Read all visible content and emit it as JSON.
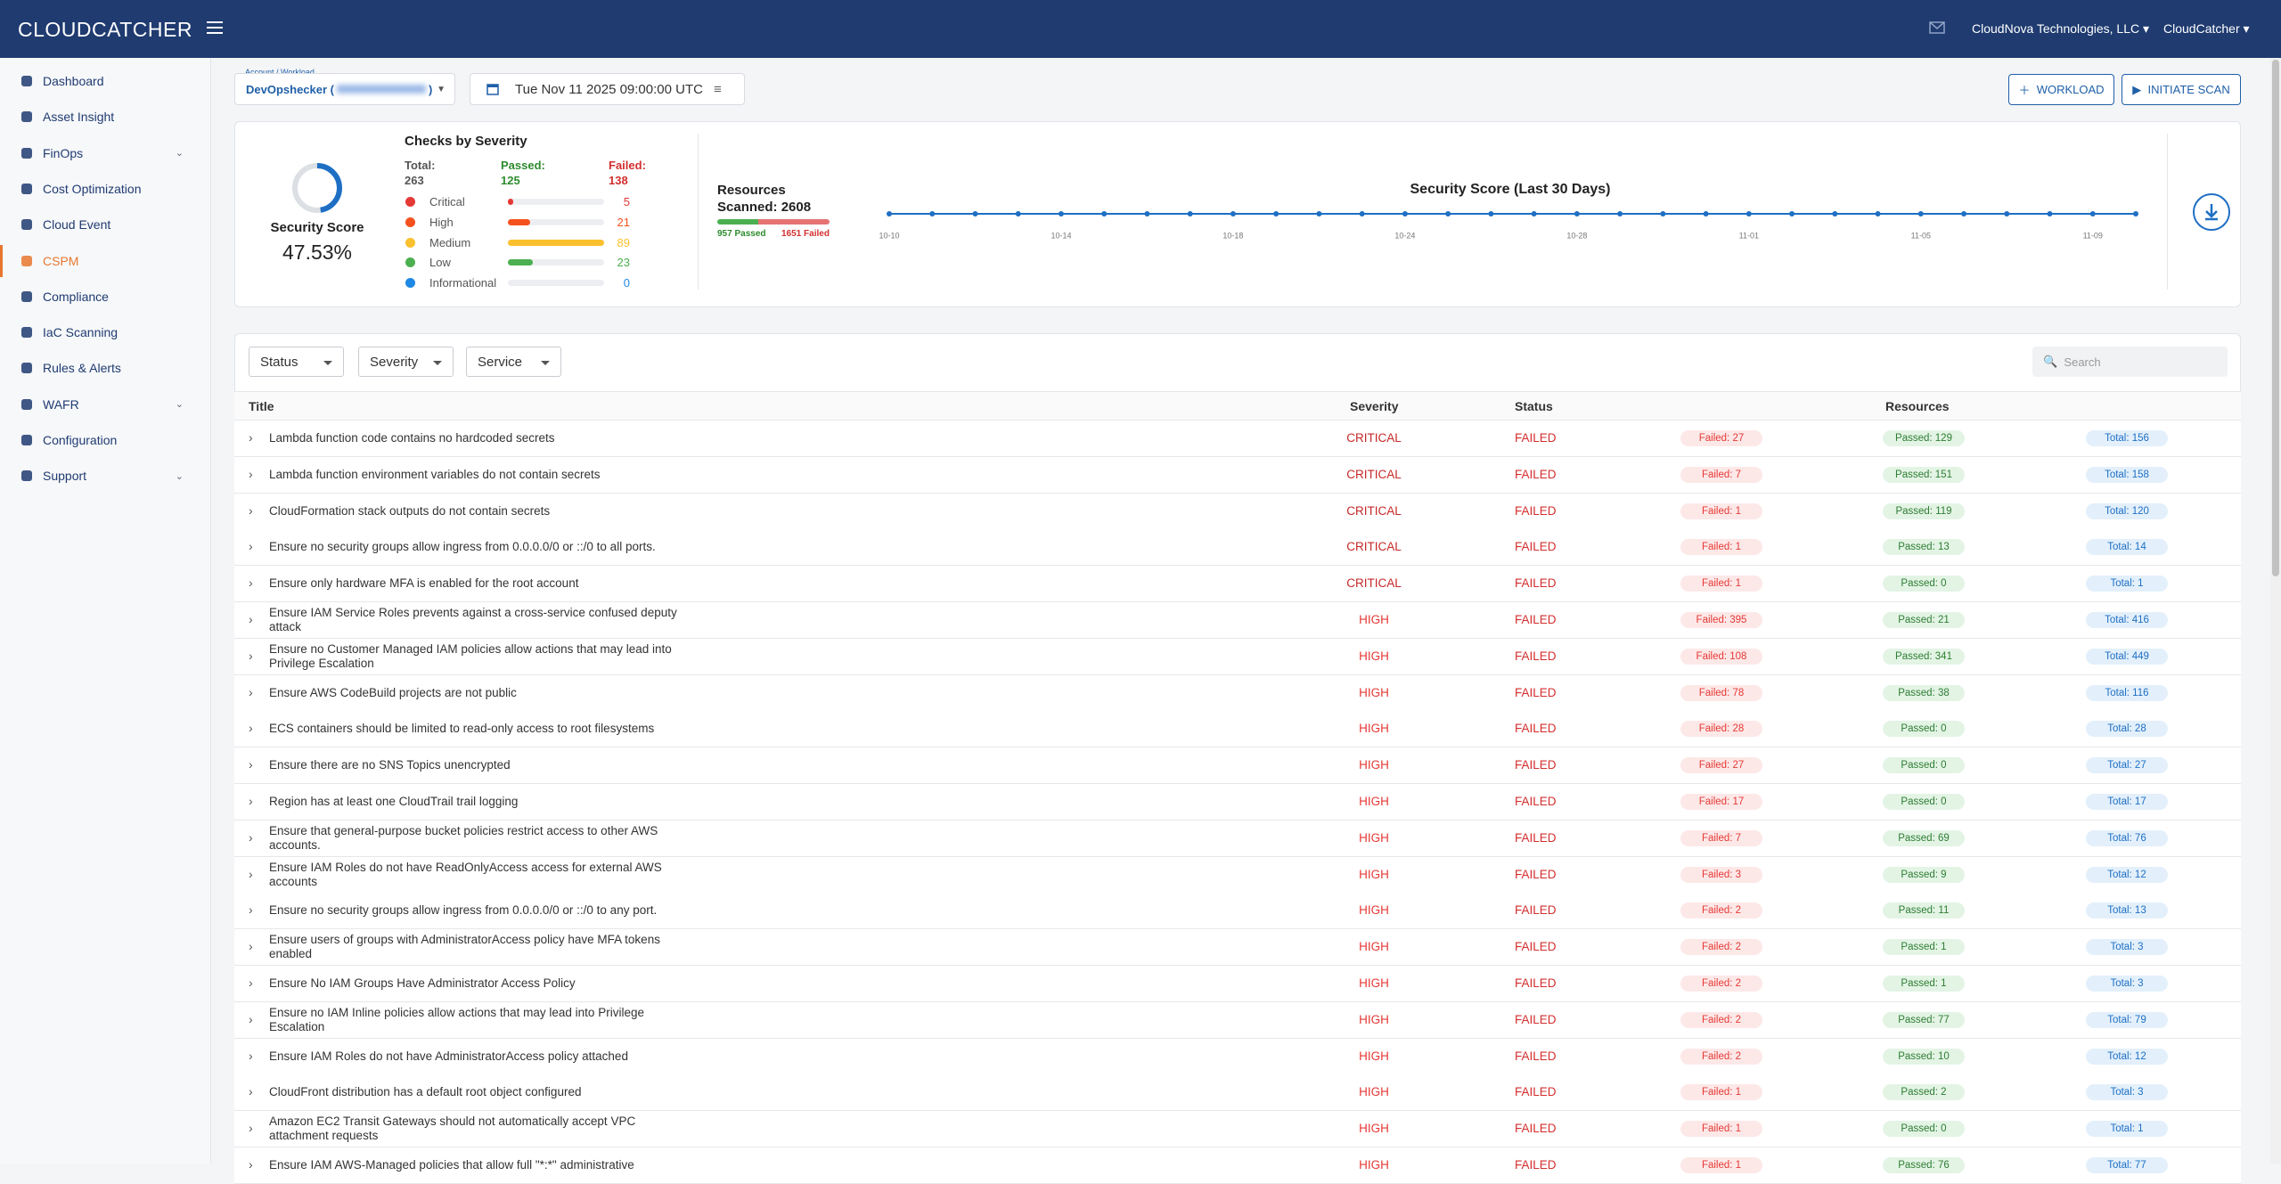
{
  "header": {
    "logo": "CLOUDCATCHER",
    "org": "CloudNova Technologies, LLC",
    "user": "CloudCatcher"
  },
  "sidebar": {
    "items": [
      {
        "label": "Dashboard"
      },
      {
        "label": "Asset Insight"
      },
      {
        "label": "FinOps",
        "expandable": true
      },
      {
        "label": "Cost Optimization"
      },
      {
        "label": "Cloud Event"
      },
      {
        "label": "CSPM",
        "active": true
      },
      {
        "label": "Compliance"
      },
      {
        "label": "IaC Scanning"
      },
      {
        "label": "Rules & Alerts"
      },
      {
        "label": "WAFR",
        "expandable": true
      },
      {
        "label": "Configuration"
      },
      {
        "label": "Support",
        "expandable": true
      }
    ]
  },
  "toolbar": {
    "account_label": "Account / Workload",
    "account_prefix": "DevOpshecker (",
    "account_suffix": ")",
    "date": "Tue Nov 11 2025 09:00:00 UTC",
    "buttons": [
      "WORKLOAD",
      "INITIATE SCAN"
    ]
  },
  "summary": {
    "score_title": "Security Score",
    "security_score": {
      "value": 47.53,
      "label": "47.53%"
    },
    "checks_title": "Checks by Severity",
    "total_label": "Total:",
    "total": 263,
    "passed_label": "Passed:",
    "passed": 125,
    "failed_label": "Failed:",
    "failed": 138,
    "severities": [
      {
        "name": "Critical",
        "color": "#e53935",
        "count": 5
      },
      {
        "name": "High",
        "color": "#f4511e",
        "count": 21
      },
      {
        "name": "Medium",
        "color": "#fbc02d",
        "count": 89
      },
      {
        "name": "Low",
        "color": "#4caf50",
        "count": 23
      },
      {
        "name": "Informational",
        "color": "#1e88e5",
        "count": 0
      }
    ],
    "resources_title": "Resources Scanned:",
    "resources_total": 2608,
    "resources_passed": {
      "value": 957,
      "label": "957 Passed"
    },
    "resources_failed": {
      "value": 1651,
      "label": "1651 Failed"
    }
  },
  "chart_data": {
    "type": "line",
    "title": "Security Score (Last 30 Days)",
    "color": "#1e6fc4",
    "categories": [
      "10-10",
      null,
      null,
      null,
      "10-14",
      null,
      null,
      null,
      "10-18",
      null,
      null,
      null,
      "10-24",
      null,
      null,
      null,
      "10-28",
      null,
      null,
      null,
      "11-01",
      null,
      null,
      null,
      "11-05",
      null,
      null,
      null,
      "11-09",
      null
    ],
    "values": [
      47.53,
      47.53,
      47.53,
      47.53,
      47.53,
      47.53,
      47.53,
      47.53,
      47.53,
      47.53,
      47.53,
      47.53,
      47.53,
      47.53,
      47.53,
      47.53,
      47.53,
      47.53,
      47.53,
      47.53,
      47.53,
      47.53,
      47.53,
      47.53,
      47.53,
      47.53,
      47.53,
      47.53,
      47.53,
      47.53
    ],
    "ylim": [
      0,
      50
    ]
  },
  "table": {
    "filters": [
      "Status",
      "Severity",
      "Service"
    ],
    "search_placeholder": "Search",
    "columns": [
      "Title",
      "Severity",
      "Status",
      "Resources"
    ],
    "rows": [
      [
        "Lambda function code contains no hardcoded secrets",
        "CRITICAL",
        "FAILED",
        "Failed: 27",
        "Passed: 129",
        "Total: 156"
      ],
      [
        "Lambda function environment variables do not contain secrets",
        "CRITICAL",
        "FAILED",
        "Failed: 7",
        "Passed: 151",
        "Total: 158"
      ],
      [
        "CloudFormation stack outputs do not contain secrets",
        "CRITICAL",
        "FAILED",
        "Failed: 1",
        "Passed: 119",
        "Total: 120"
      ],
      [
        "Ensure no security groups allow ingress from 0.0.0.0/0 or ::/0 to all ports.",
        "CRITICAL",
        "FAILED",
        "Failed: 1",
        "Passed: 13",
        "Total: 14"
      ],
      [
        "Ensure only hardware MFA is enabled for the root account",
        "CRITICAL",
        "FAILED",
        "Failed: 1",
        "Passed: 0",
        "Total: 1"
      ],
      [
        "Ensure IAM Service Roles prevents against a cross-service confused deputy attack",
        "HIGH",
        "FAILED",
        "Failed: 395",
        "Passed: 21",
        "Total: 416"
      ],
      [
        "Ensure no Customer Managed IAM policies allow actions that may lead into Privilege Escalation",
        "HIGH",
        "FAILED",
        "Failed: 108",
        "Passed: 341",
        "Total: 449"
      ],
      [
        "Ensure AWS CodeBuild projects are not public",
        "HIGH",
        "FAILED",
        "Failed: 78",
        "Passed: 38",
        "Total: 116"
      ],
      [
        "ECS containers should be limited to read-only access to root filesystems",
        "HIGH",
        "FAILED",
        "Failed: 28",
        "Passed: 0",
        "Total: 28"
      ],
      [
        "Ensure there are no SNS Topics unencrypted",
        "HIGH",
        "FAILED",
        "Failed: 27",
        "Passed: 0",
        "Total: 27"
      ],
      [
        "Region has at least one CloudTrail trail logging",
        "HIGH",
        "FAILED",
        "Failed: 17",
        "Passed: 0",
        "Total: 17"
      ],
      [
        "Ensure that general-purpose bucket policies restrict access to other AWS accounts.",
        "HIGH",
        "FAILED",
        "Failed: 7",
        "Passed: 69",
        "Total: 76"
      ],
      [
        "Ensure IAM Roles do not have ReadOnlyAccess access for external AWS accounts",
        "HIGH",
        "FAILED",
        "Failed: 3",
        "Passed: 9",
        "Total: 12"
      ],
      [
        "Ensure no security groups allow ingress from 0.0.0.0/0 or ::/0 to any port.",
        "HIGH",
        "FAILED",
        "Failed: 2",
        "Passed: 11",
        "Total: 13"
      ],
      [
        "Ensure users of groups with AdministratorAccess policy have MFA tokens enabled",
        "HIGH",
        "FAILED",
        "Failed: 2",
        "Passed: 1",
        "Total: 3"
      ],
      [
        "Ensure No IAM Groups Have Administrator Access Policy",
        "HIGH",
        "FAILED",
        "Failed: 2",
        "Passed: 1",
        "Total: 3"
      ],
      [
        "Ensure no IAM Inline policies allow actions that may lead into Privilege Escalation",
        "HIGH",
        "FAILED",
        "Failed: 2",
        "Passed: 77",
        "Total: 79"
      ],
      [
        "Ensure IAM Roles do not have AdministratorAccess policy attached",
        "HIGH",
        "FAILED",
        "Failed: 2",
        "Passed: 10",
        "Total: 12"
      ],
      [
        "CloudFront distribution has a default root object configured",
        "HIGH",
        "FAILED",
        "Failed: 1",
        "Passed: 2",
        "Total: 3"
      ],
      [
        "Amazon EC2 Transit Gateways should not automatically accept VPC attachment requests",
        "HIGH",
        "FAILED",
        "Failed: 1",
        "Passed: 0",
        "Total: 1"
      ],
      [
        "Ensure IAM AWS-Managed policies that allow full \"*:*\" administrative",
        "HIGH",
        "FAILED",
        "Failed: 1",
        "Passed: 76",
        "Total: 77"
      ]
    ]
  }
}
